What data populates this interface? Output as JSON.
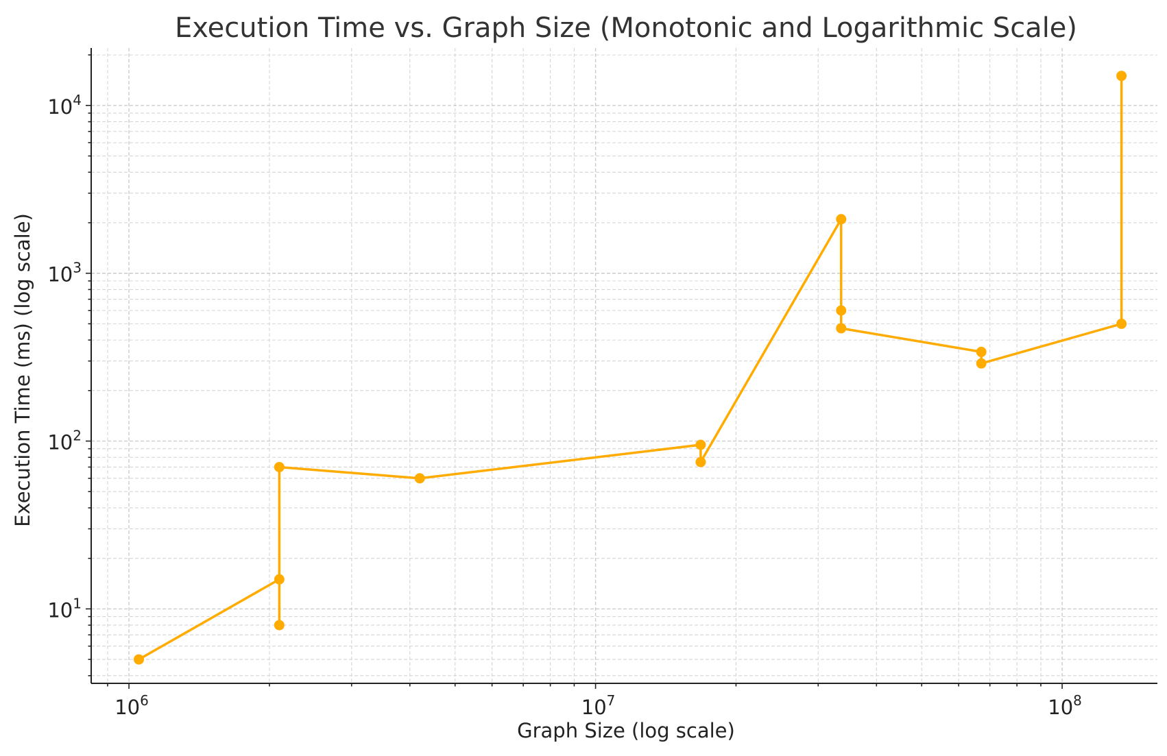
{
  "chart_data": {
    "type": "line",
    "title": "Execution Time vs. Graph Size (Monotonic and Logarithmic Scale)",
    "xlabel": "Graph Size (log scale)",
    "ylabel": "Execution Time (ms) (log scale)",
    "xscale": "log",
    "yscale": "log",
    "xlim": [
      830000,
      160000000
    ],
    "ylim": [
      3.6,
      22000
    ],
    "grid": true,
    "grid_which": "both",
    "x_ticks": [
      {
        "value": 1000000,
        "base": "10",
        "exp": "6"
      },
      {
        "value": 10000000,
        "base": "10",
        "exp": "7"
      },
      {
        "value": 100000000,
        "base": "10",
        "exp": "8"
      }
    ],
    "y_ticks": [
      {
        "value": 10,
        "base": "10",
        "exp": "1"
      },
      {
        "value": 100,
        "base": "10",
        "exp": "2"
      },
      {
        "value": 1000,
        "base": "10",
        "exp": "3"
      },
      {
        "value": 10000,
        "base": "10",
        "exp": "4"
      }
    ],
    "color": "#FFAB00",
    "series": [
      {
        "x": [
          1050000,
          2100000,
          2100000,
          2100000,
          4200000,
          16800000,
          16800000,
          33600000,
          33600000,
          33600000,
          67100000,
          67100000,
          134000000,
          134000000
        ],
        "y": [
          5,
          15,
          8,
          70,
          60,
          95,
          75,
          2100,
          600,
          470,
          340,
          290,
          500,
          15000
        ]
      }
    ]
  }
}
